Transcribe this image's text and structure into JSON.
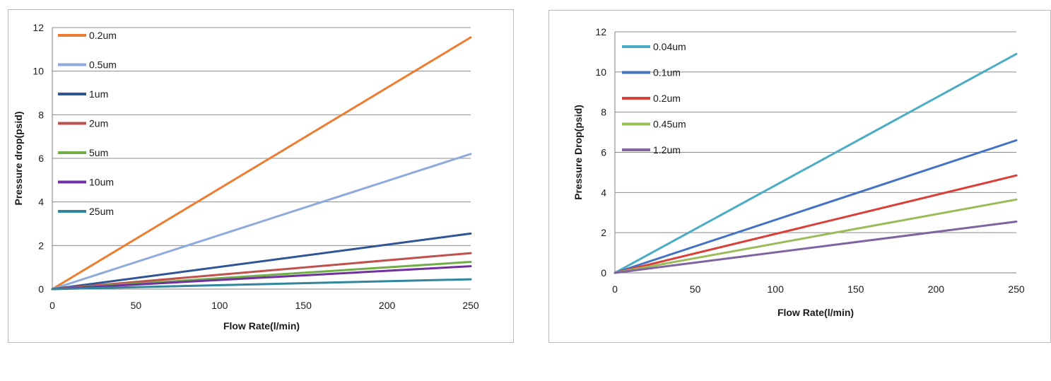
{
  "chart_data": [
    {
      "type": "line",
      "title": "",
      "xlabel": "Flow Rate(l/min)",
      "ylabel": "Pressure drop(psid)",
      "xlim": [
        0,
        250
      ],
      "ylim": [
        0,
        12
      ],
      "xticks": [
        "0",
        "50",
        "100",
        "150",
        "200",
        "250"
      ],
      "yticks": [
        "0",
        "2",
        "4",
        "6",
        "8",
        "10",
        "12"
      ],
      "grid": true,
      "legend_position": "top-left",
      "x": [
        0,
        250
      ],
      "series": [
        {
          "name": "0.2um",
          "color": "#ED7D31",
          "values": [
            0,
            11.55
          ]
        },
        {
          "name": "0.5um",
          "color": "#8FAADC",
          "values": [
            0,
            6.2
          ]
        },
        {
          "name": "1um",
          "color": "#2F5597",
          "values": [
            0,
            2.55
          ]
        },
        {
          "name": "2um",
          "color": "#C0504D",
          "values": [
            0,
            1.65
          ]
        },
        {
          "name": "5um",
          "color": "#70AD47",
          "values": [
            0,
            1.25
          ]
        },
        {
          "name": "10um",
          "color": "#7030A0",
          "values": [
            0,
            1.05
          ]
        },
        {
          "name": "25um",
          "color": "#31859C",
          "values": [
            0,
            0.45
          ]
        }
      ]
    },
    {
      "type": "line",
      "title": "",
      "xlabel": "Flow Rate(l/min)",
      "ylabel": "Pressure Drop(psid)",
      "xlim": [
        0,
        250
      ],
      "ylim": [
        0,
        12
      ],
      "xticks": [
        "0",
        "50",
        "100",
        "150",
        "200",
        "250"
      ],
      "yticks": [
        "0",
        "2",
        "4",
        "6",
        "8",
        "10",
        "12"
      ],
      "grid": true,
      "legend_position": "top-left",
      "x": [
        0,
        250
      ],
      "series": [
        {
          "name": "0.04um",
          "color": "#4BACC6",
          "values": [
            0,
            10.9
          ]
        },
        {
          "name": "0.1um",
          "color": "#4472C4",
          "values": [
            0,
            6.6
          ]
        },
        {
          "name": "0.2um",
          "color": "#D9403A",
          "values": [
            0,
            4.85
          ]
        },
        {
          "name": "0.45um",
          "color": "#9BBB59",
          "values": [
            0,
            3.65
          ]
        },
        {
          "name": "1.2um",
          "color": "#8064A2",
          "values": [
            0,
            2.55
          ]
        }
      ]
    }
  ]
}
